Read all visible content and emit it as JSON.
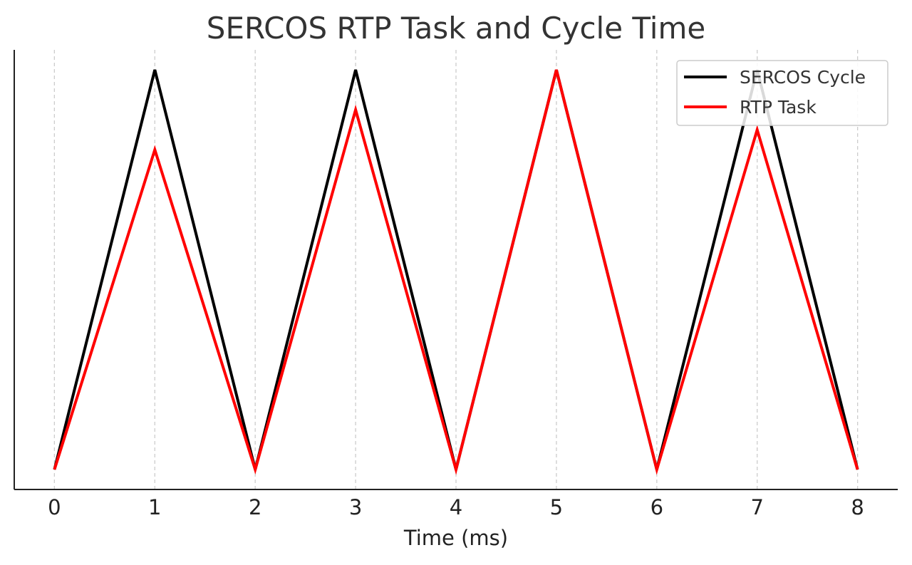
{
  "chart_data": {
    "type": "line",
    "title": "SERCOS RTP Task and Cycle Time",
    "xlabel": "Time (ms)",
    "ylabel": "",
    "x": [
      0,
      1,
      2,
      3,
      4,
      5,
      6,
      7,
      8
    ],
    "xticks": [
      "0",
      "1",
      "2",
      "3",
      "4",
      "5",
      "6",
      "7",
      "8"
    ],
    "xlim": [
      -0.4,
      8.4
    ],
    "ylim": [
      -0.05,
      1.05
    ],
    "y_ticks_visible": false,
    "grid": "vertical dashed",
    "legend_position": "top-right",
    "series": [
      {
        "name": "SERCOS Cycle",
        "color": "#000000",
        "values": [
          0,
          1,
          0,
          1,
          0,
          1,
          0,
          1,
          0
        ]
      },
      {
        "name": "RTP Task",
        "color": "#ff0000",
        "values": [
          0,
          0.8,
          0,
          0.9,
          0,
          1,
          0,
          0.85,
          0
        ]
      }
    ]
  }
}
